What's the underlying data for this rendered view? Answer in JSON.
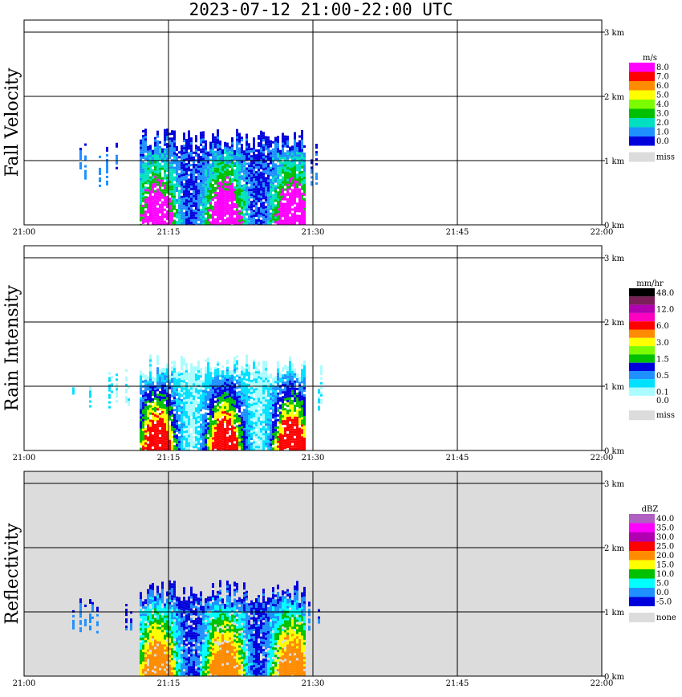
{
  "title": "2023-07-12   21:00-22:00 UTC",
  "time_ticks": [
    "21:00",
    "21:15",
    "21:30",
    "21:45",
    "22:00"
  ],
  "height_ticks": [
    "0 km",
    "1 km",
    "2 km",
    "3 km"
  ],
  "colors": {
    "grid": "#000000",
    "missing_background": "#dcdcdc"
  },
  "panels": [
    {
      "id": "fall-velocity",
      "ylabel": "Fall Velocity",
      "unit": "m/s",
      "background": "#ffffff",
      "legend": [
        {
          "label": "8.0",
          "color": "#ff00ff"
        },
        {
          "label": "7.0",
          "color": "#ff0000"
        },
        {
          "label": "6.0",
          "color": "#ff8c00"
        },
        {
          "label": "5.0",
          "color": "#ffff00"
        },
        {
          "label": "4.0",
          "color": "#7cfc00"
        },
        {
          "label": "3.0",
          "color": "#00c000"
        },
        {
          "label": "2.0",
          "color": "#00e0c0"
        },
        {
          "label": "1.0",
          "color": "#1e90ff"
        },
        {
          "label": "0.0",
          "color": "#0000dd"
        },
        {
          "label": "miss",
          "color": "#dcdcdc",
          "gap": true
        }
      ],
      "palette": [
        "#0000dd",
        "#1e90ff",
        "#00e0c0",
        "#00c000",
        "#ff00ff"
      ]
    },
    {
      "id": "rain-intensity",
      "ylabel": "Rain Intensity",
      "unit": "mm/hr",
      "background": "#ffffff",
      "legend": [
        {
          "label": "48.0",
          "color": "#000000"
        },
        {
          "label": "",
          "color": "#7a1f5a"
        },
        {
          "label": "12.0",
          "color": "#b000b0"
        },
        {
          "label": "",
          "color": "#ff00c0"
        },
        {
          "label": "6.0",
          "color": "#ff0000"
        },
        {
          "label": "",
          "color": "#ff8c00"
        },
        {
          "label": "3.0",
          "color": "#ffff00"
        },
        {
          "label": "",
          "color": "#7cfc00"
        },
        {
          "label": "1.5",
          "color": "#00c000"
        },
        {
          "label": "",
          "color": "#0000dd"
        },
        {
          "label": "0.5",
          "color": "#1e90ff"
        },
        {
          "label": "",
          "color": "#00e0ff"
        },
        {
          "label": "0.1",
          "color": "#aafcff"
        },
        {
          "label": "0.0",
          "color": "#ffffff"
        },
        {
          "label": "miss",
          "color": "#dcdcdc",
          "gap": true
        }
      ],
      "palette": [
        "#aafcff",
        "#00e0ff",
        "#1e90ff",
        "#0000dd",
        "#00c000",
        "#ffff00",
        "#ff0000"
      ]
    },
    {
      "id": "reflectivity",
      "ylabel": "Reflectivity",
      "unit": "dBZ",
      "background": "#dcdcdc",
      "legend": [
        {
          "label": "40.0",
          "color": "#b060c0"
        },
        {
          "label": "35.0",
          "color": "#ff00ff"
        },
        {
          "label": "30.0",
          "color": "#b000b0"
        },
        {
          "label": "25.0",
          "color": "#ff0000"
        },
        {
          "label": "20.0",
          "color": "#ff8c00"
        },
        {
          "label": "15.0",
          "color": "#ffff00"
        },
        {
          "label": "10.0",
          "color": "#00c000"
        },
        {
          "label": "5.0",
          "color": "#00ffff"
        },
        {
          "label": "0.0",
          "color": "#1e90ff"
        },
        {
          "label": "-5.0",
          "color": "#0000dd"
        },
        {
          "label": "none",
          "color": "#dcdcdc",
          "gap": true
        }
      ],
      "palette": [
        "#0000dd",
        "#1e90ff",
        "#00ffff",
        "#00c000",
        "#ffff00",
        "#ff8c00"
      ]
    }
  ],
  "chart_data": [
    {
      "type": "heatmap",
      "title": "2023-07-12   21:00-22:00 UTC",
      "ylabel": "Fall Velocity",
      "colorbar_unit": "m/s",
      "x_range": [
        "21:00",
        "22:00"
      ],
      "y_range_km": [
        0,
        3.2
      ],
      "grid": true,
      "echo_span": [
        "21:05",
        "21:31"
      ],
      "main_echo": {
        "start": "21:12",
        "end": "21:29",
        "top_km": 1.5
      },
      "values_range": [
        0.0,
        8.0
      ]
    },
    {
      "type": "heatmap",
      "ylabel": "Rain Intensity",
      "colorbar_unit": "mm/hr",
      "x_range": [
        "21:00",
        "22:00"
      ],
      "y_range_km": [
        0,
        3.2
      ],
      "grid": true,
      "echo_span": [
        "21:05",
        "21:31"
      ],
      "main_echo": {
        "start": "21:12",
        "end": "21:29",
        "top_km": 1.5
      },
      "values_range": [
        0.0,
        48.0
      ]
    },
    {
      "type": "heatmap",
      "ylabel": "Reflectivity",
      "colorbar_unit": "dBZ",
      "x_range": [
        "21:00",
        "22:00"
      ],
      "y_range_km": [
        0,
        3.2
      ],
      "grid": true,
      "echo_span": [
        "21:05",
        "21:31"
      ],
      "main_echo": {
        "start": "21:12",
        "end": "21:29",
        "top_km": 1.5
      },
      "values_range": [
        -5.0,
        40.0
      ]
    }
  ]
}
